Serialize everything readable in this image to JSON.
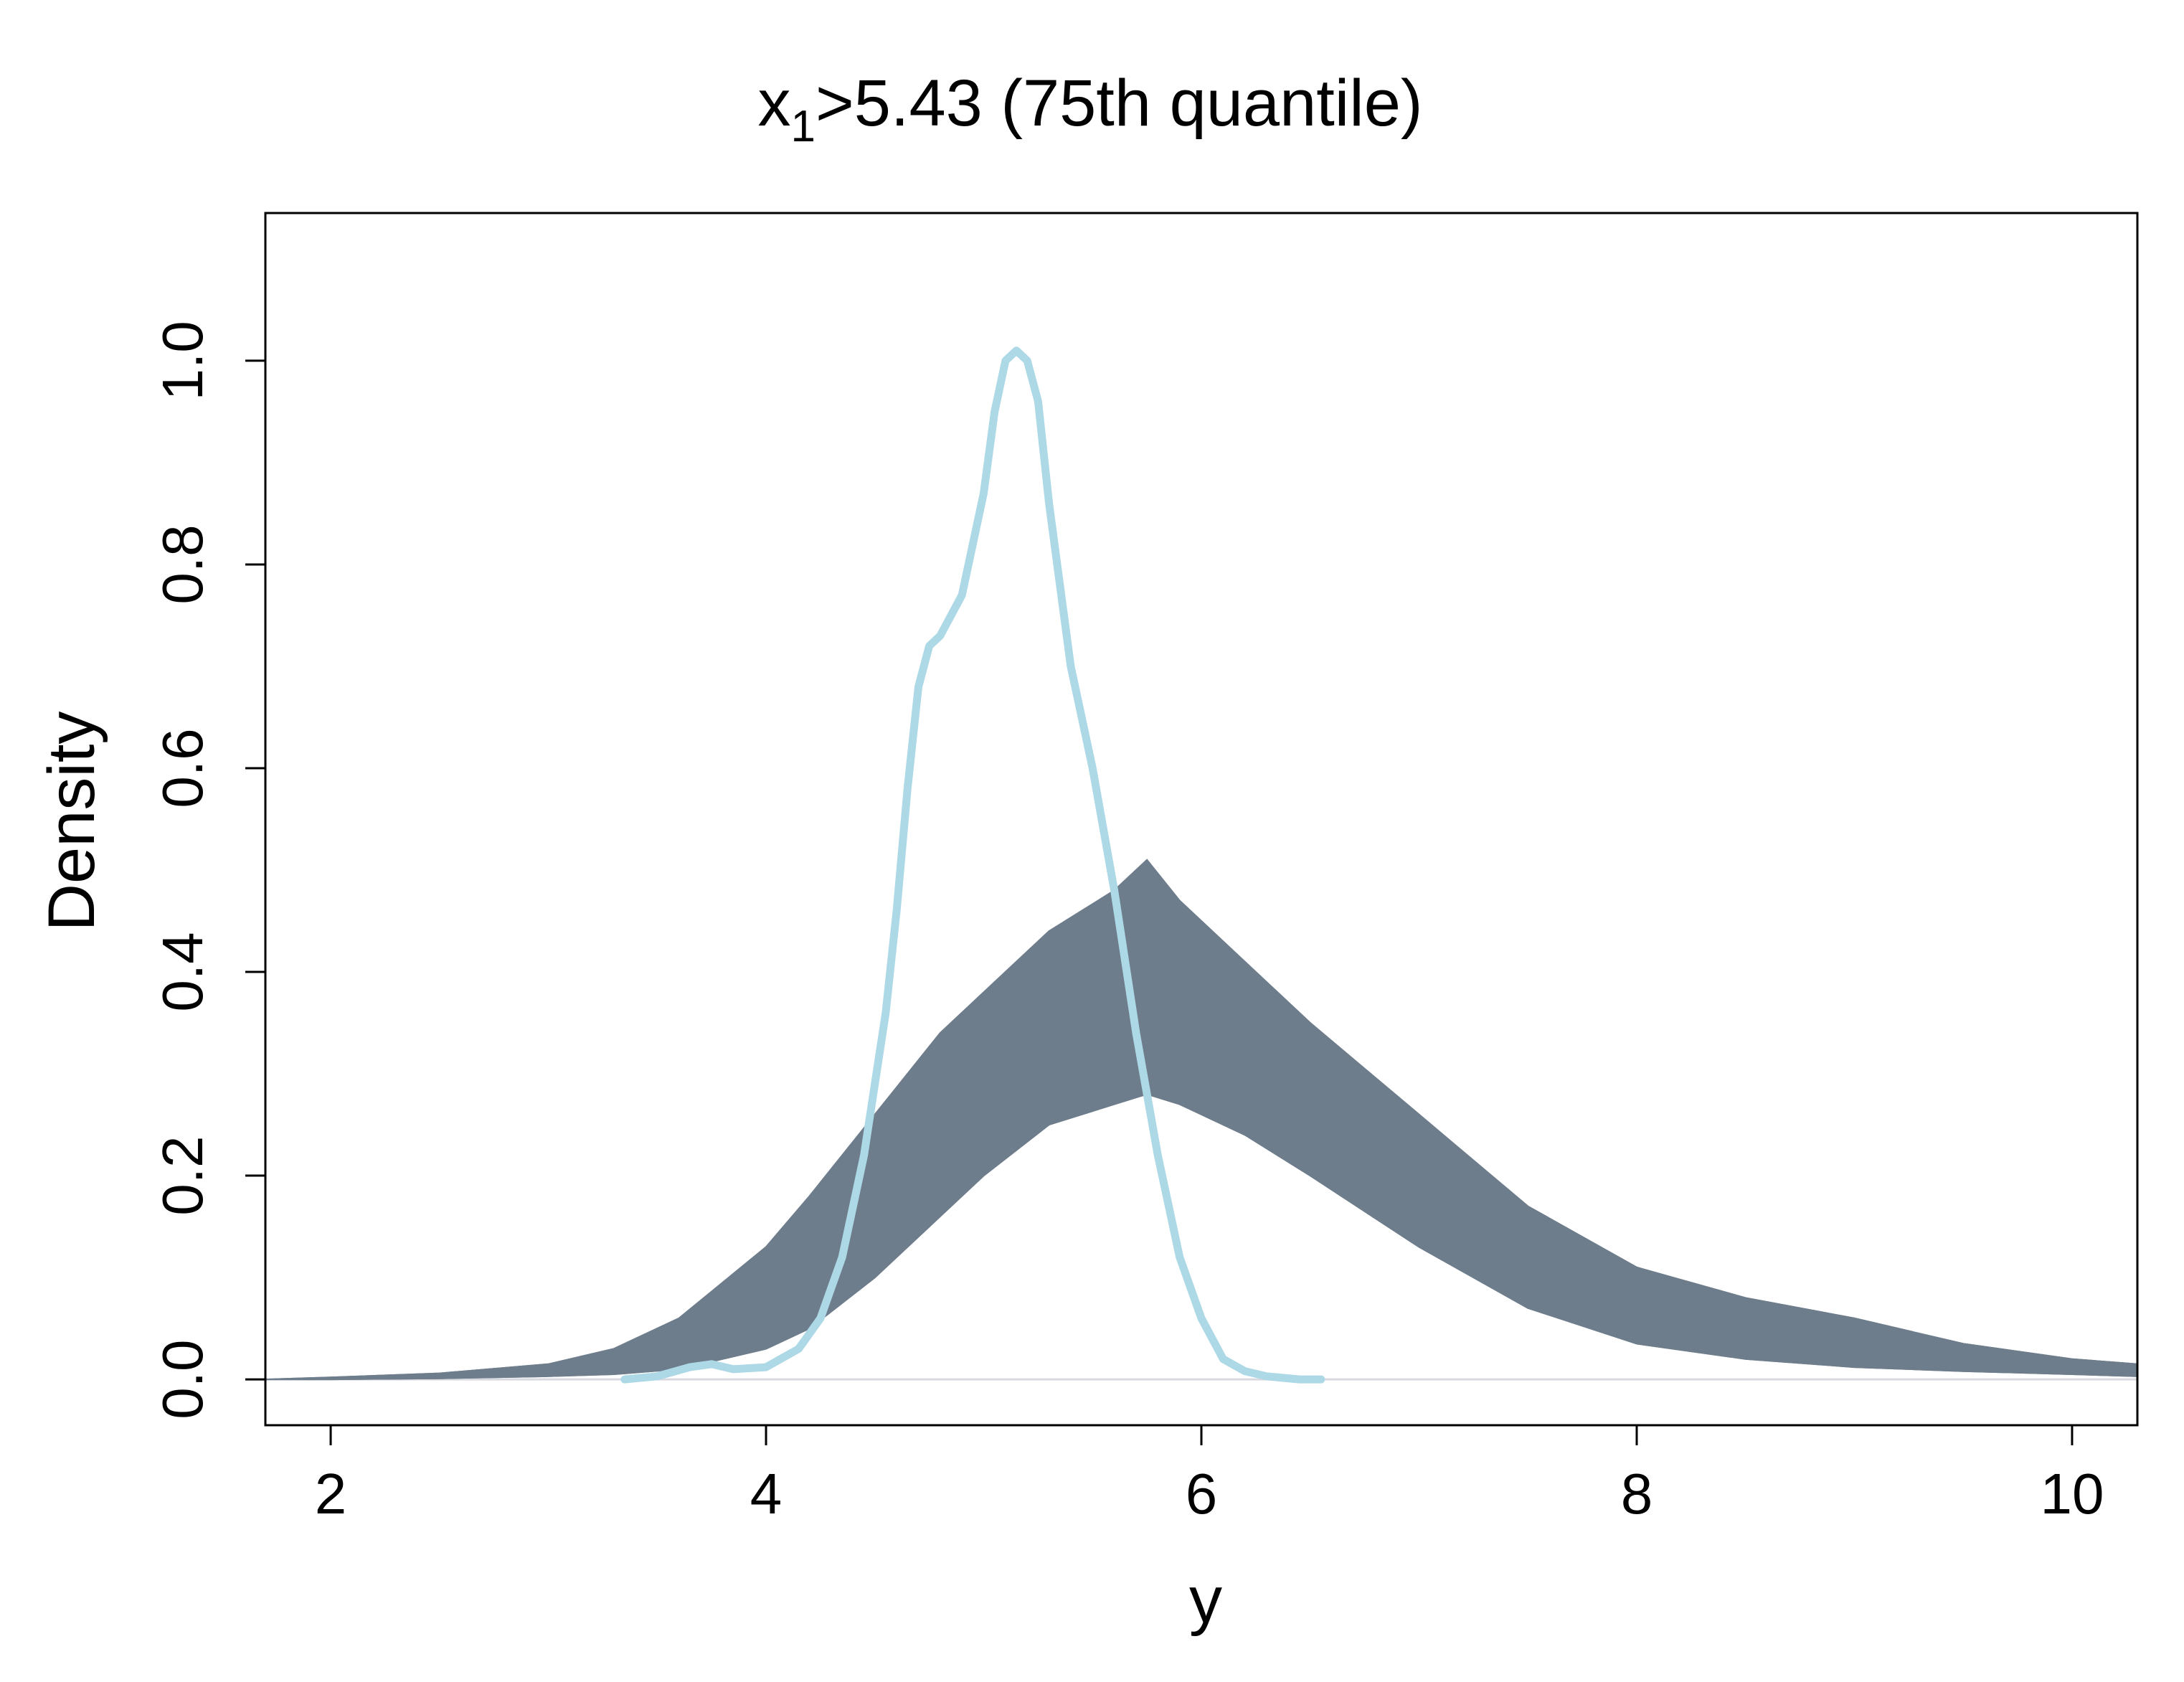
{
  "chart_data": {
    "type": "line",
    "title": {
      "main": "x",
      "subscript": "1",
      "rest": ">5.43 (75th quantile)"
    },
    "xlabel": "y",
    "ylabel": "Density",
    "xlim": [
      1.7,
      10.3
    ],
    "ylim": [
      -0.045,
      1.145
    ],
    "x_ticks": [
      2,
      4,
      6,
      8,
      10
    ],
    "x_tick_labels": [
      "2",
      "4",
      "6",
      "8",
      "10"
    ],
    "y_ticks": [
      0.0,
      0.2,
      0.4,
      0.6,
      0.8,
      1.0
    ],
    "y_tick_labels": [
      "0.0",
      "0.2",
      "0.4",
      "0.6",
      "0.8",
      "1.0"
    ],
    "grid": false,
    "legend": "none",
    "baseline": 0,
    "colors": {
      "band": "#6e7d8c",
      "observed": "#add8e6",
      "baseline": "#d9d9e0",
      "frame": "#000000"
    },
    "series": [
      {
        "role": "replicated-density-band-upper",
        "x": [
          1.7,
          2.0,
          2.5,
          3.0,
          3.3,
          3.6,
          4.0,
          4.2,
          4.5,
          4.8,
          5.0,
          5.3,
          5.6,
          5.75,
          5.9,
          6.2,
          6.5,
          7.0,
          7.5,
          8.0,
          8.5,
          9.0,
          9.5,
          10.0,
          10.3
        ],
        "y": [
          0.0,
          0.002,
          0.006,
          0.015,
          0.03,
          0.06,
          0.13,
          0.18,
          0.26,
          0.34,
          0.38,
          0.44,
          0.48,
          0.51,
          0.47,
          0.41,
          0.35,
          0.26,
          0.17,
          0.11,
          0.08,
          0.06,
          0.035,
          0.02,
          0.015
        ]
      },
      {
        "role": "replicated-density-band-lower",
        "x": [
          1.7,
          2.0,
          2.5,
          3.0,
          3.3,
          3.6,
          4.0,
          4.2,
          4.5,
          4.8,
          5.0,
          5.3,
          5.6,
          5.75,
          5.9,
          6.2,
          6.5,
          7.0,
          7.5,
          8.0,
          8.5,
          9.0,
          9.5,
          10.0,
          10.3
        ],
        "y": [
          0.0,
          0.0,
          0.001,
          0.003,
          0.005,
          0.01,
          0.03,
          0.05,
          0.1,
          0.16,
          0.2,
          0.25,
          0.27,
          0.28,
          0.27,
          0.24,
          0.2,
          0.13,
          0.07,
          0.035,
          0.02,
          0.012,
          0.008,
          0.005,
          0.003
        ]
      },
      {
        "role": "observed-density",
        "x": [
          3.35,
          3.5,
          3.65,
          3.75,
          3.85,
          4.0,
          4.15,
          4.25,
          4.35,
          4.45,
          4.55,
          4.6,
          4.65,
          4.7,
          4.75,
          4.8,
          4.9,
          5.0,
          5.05,
          5.1,
          5.15,
          5.2,
          5.25,
          5.3,
          5.4,
          5.5,
          5.6,
          5.7,
          5.8,
          5.9,
          6.0,
          6.1,
          6.2,
          6.3,
          6.45,
          6.55
        ],
        "y": [
          0.0,
          0.003,
          0.012,
          0.015,
          0.01,
          0.012,
          0.03,
          0.06,
          0.12,
          0.22,
          0.36,
          0.46,
          0.58,
          0.68,
          0.72,
          0.73,
          0.77,
          0.87,
          0.95,
          1.0,
          1.01,
          1.0,
          0.96,
          0.86,
          0.7,
          0.6,
          0.48,
          0.34,
          0.22,
          0.12,
          0.06,
          0.02,
          0.008,
          0.003,
          0.0,
          0.0
        ]
      }
    ]
  }
}
